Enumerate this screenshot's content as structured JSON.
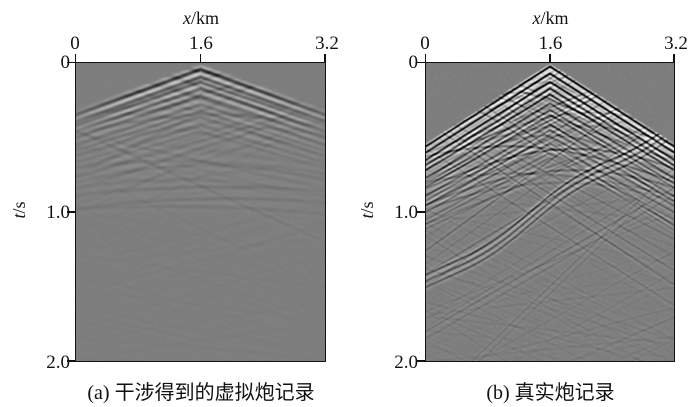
{
  "figure": {
    "bg": "#ffffff",
    "text_color": "#111111",
    "panel_bg": "#7e7e7e",
    "panel_border": "#111111",
    "panels": [
      {
        "caption": "(a) 干涉得到的虚拟炮记录",
        "x_axis": {
          "var": "x",
          "unit": "/km",
          "ticks": [
            "0",
            "1.6",
            "3.2"
          ]
        },
        "y_axis": {
          "var": "t",
          "unit": "/s",
          "ticks": [
            "0",
            "1.0",
            "2.0"
          ]
        }
      },
      {
        "caption": "(b) 真实炮记录",
        "x_axis": {
          "var": "x",
          "unit": "/km",
          "ticks": [
            "0",
            "1.6",
            "3.2"
          ]
        },
        "y_axis": {
          "var": "t",
          "unit": "/s",
          "ticks": [
            "0",
            "1.0",
            "2.0"
          ]
        }
      }
    ]
  },
  "chart_data": {
    "type": "heatmap",
    "subtype": "seismic-shot-gather-pair",
    "title": "",
    "x": {
      "label": "x/km",
      "range": [
        0,
        3.2
      ],
      "ticks": [
        0,
        1.6,
        3.2
      ]
    },
    "y": {
      "label": "t/s",
      "range": [
        0,
        2.0
      ],
      "ticks": [
        0,
        1.0,
        2.0
      ],
      "direction": "down"
    },
    "colormap": "grayscale (positive=black, negative=white, zero=mid-gray)",
    "panels": [
      {
        "name": "(a) 干涉得到的虚拟炮记录",
        "description": "Virtual shot gather from interferometry: smooth, low-amplitude tent of arrivals, apex at x=1.6 km t=0.04 s, limbs reach x=0/3.2 km near t=0.33 s; energy fades out below t=1.2 s.",
        "seed": 20240113,
        "first_break": {
          "xc": 1.6,
          "t0": 0.035,
          "slope": 0.19
        },
        "tents": {
          "count": 10,
          "t0": 0.04,
          "dt": 0.047,
          "slope": 0.19,
          "dslope": 0.004,
          "amp": 0.95,
          "decay": 0.2,
          "jitter": 0.012
        },
        "hyperbolas": {
          "count": 9,
          "tmin": 0.22,
          "tmax": 1.0,
          "s": 0.2,
          "amp": 0.16,
          "spread": 0.9
        },
        "linears": [
          {
            "t0": 0.95,
            "slope": -0.18,
            "amp": 0.1,
            "bands": 1,
            "gap": 0.04,
            "bend": 0
          }
        ],
        "streaks": {
          "count": 70,
          "amp": 0.055,
          "smin": 0.04,
          "smax": 0.25,
          "tmax": 2.1
        },
        "upper_streaks": {
          "count": 30,
          "amp": 0.14,
          "smin": 0.1,
          "smax": 0.28,
          "tmax": 0.55
        },
        "render": {
          "wavelet_s": 0.02,
          "gain": 105,
          "grain": 0.045,
          "depth_fade": 1.0,
          "edge_fade": 0.55,
          "edge_start": 0.95,
          "edge_width": 0.65,
          "bg_level": 126
        }
      },
      {
        "name": "(b) 真实炮记录",
        "description": "Real shot gather: sharp strong first-arrival V, apex at x=1.6 km t=0.02 s, slope 0.335 s/km; dense criss-crossing events inside the V; strong 3-band linear event rising from (0 km, 1.45 s) toward (3.2 km, 0.38 s).",
        "seed": 99017,
        "first_break": {
          "xc": 1.6,
          "t0": 0.02,
          "slope": 0.335
        },
        "tents": {
          "count": 14,
          "t0": 0.02,
          "dt": 0.048,
          "slope": 0.335,
          "dslope": 0.0045,
          "amp": 1.5,
          "decay": 0.12,
          "jitter": 0.01
        },
        "hyperbolas": {
          "count": 10,
          "tmin": 0.12,
          "tmax": 0.9,
          "s": 0.3,
          "amp": 0.38,
          "spread": 1.1
        },
        "linears": [
          {
            "t0": 1.45,
            "slope": -0.335,
            "amp": 0.9,
            "bands": 3,
            "gap": 0.042,
            "bend": 0.035
          },
          {
            "t0": 1.8,
            "slope": -0.3,
            "amp": 0.28,
            "bands": 2,
            "gap": 0.05,
            "bend": 0
          },
          {
            "t0": 0.95,
            "slope": -0.26,
            "amp": 0.3,
            "bands": 1,
            "gap": 0.04,
            "bend": 0
          },
          {
            "t0": 2.3,
            "slope": -0.5,
            "amp": 0.22,
            "bands": 2,
            "gap": 0.05,
            "bend": 0
          }
        ],
        "streaks": {
          "count": 90,
          "amp": 0.085,
          "smin": 0.05,
          "smax": 0.33,
          "tmax": 2.3
        },
        "upper_streaks": {
          "count": 55,
          "amp": 0.3,
          "smin": 0.18,
          "smax": 0.4,
          "tmax": 0.85
        },
        "render": {
          "wavelet_s": 0.0125,
          "gain": 150,
          "grain": 0.05,
          "depth_fade": 0.5,
          "edge_fade": 0.15,
          "edge_start": 1.25,
          "edge_width": 0.5,
          "bg_level": 126
        }
      }
    ]
  }
}
